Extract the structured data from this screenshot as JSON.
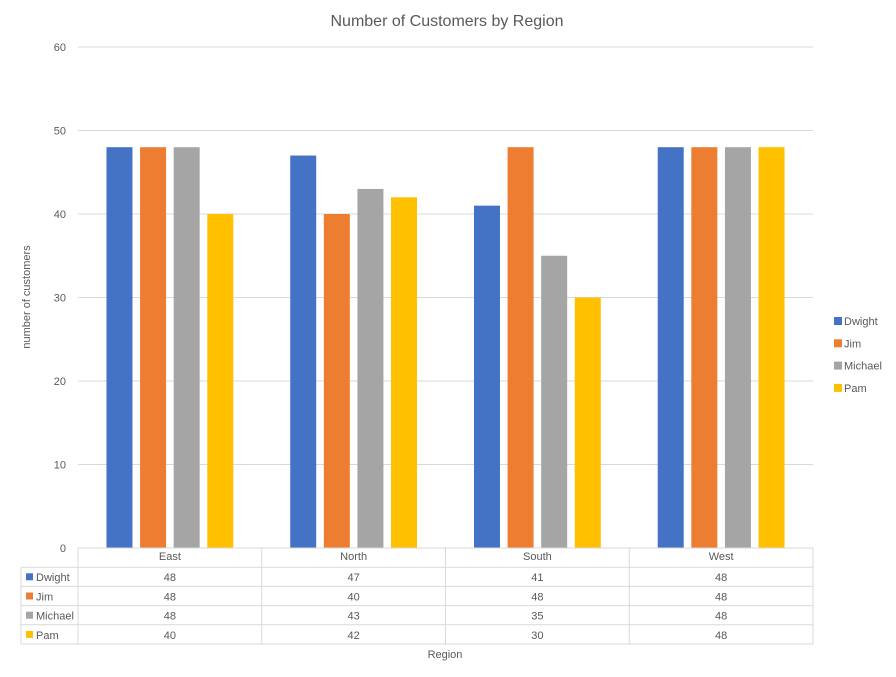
{
  "chart_data": {
    "type": "bar",
    "title": "Number of Customers by Region",
    "xlabel": "Region",
    "ylabel": "number of customers",
    "ylim": [
      0,
      60
    ],
    "yticks": [
      0,
      10,
      20,
      30,
      40,
      50,
      60
    ],
    "grid": true,
    "legend_position": "right",
    "data_table": true,
    "categories": [
      "East",
      "North",
      "South",
      "West"
    ],
    "series": [
      {
        "name": "Dwight",
        "color": "#4472C4",
        "values": [
          48,
          47,
          41,
          48
        ]
      },
      {
        "name": "Jim",
        "color": "#ED7D31",
        "values": [
          48,
          40,
          48,
          48
        ]
      },
      {
        "name": "Michael",
        "color": "#A5A5A5",
        "values": [
          48,
          43,
          35,
          48
        ]
      },
      {
        "name": "Pam",
        "color": "#FFC000",
        "values": [
          40,
          42,
          30,
          48
        ]
      }
    ]
  }
}
